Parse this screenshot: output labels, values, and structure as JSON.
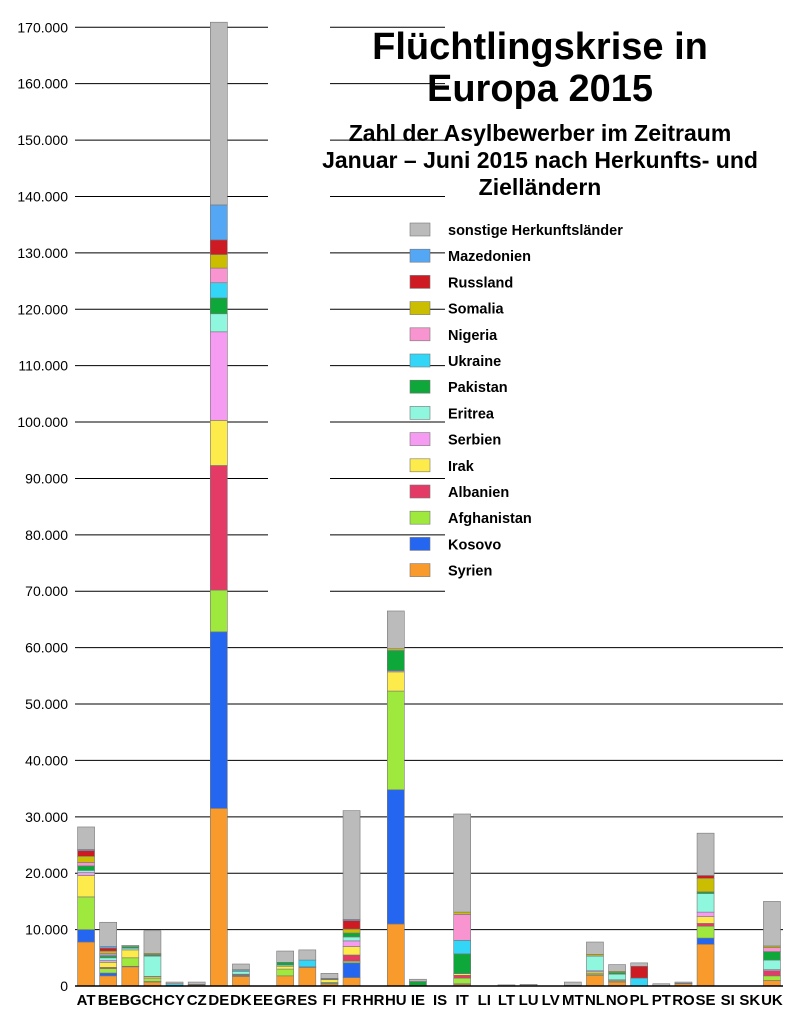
{
  "chart_data": {
    "type": "bar",
    "stacked": true,
    "title": "Flüchtlingskrise in Europa 2015",
    "subtitle": "Zahl der Asylbewerber im Zeitraum Januar – Juni 2015 nach Herkunfts- und Zielländern",
    "xlabel": "",
    "ylabel": "",
    "ylim": [
      0,
      172000
    ],
    "yticks": [
      "0",
      "10.000",
      "20.000",
      "30.000",
      "40.000",
      "50.000",
      "60.000",
      "70.000",
      "80.000",
      "90.000",
      "100.000",
      "110.000",
      "120.000",
      "130.000",
      "140.000",
      "150.000",
      "160.000",
      "170.000"
    ],
    "ytick_values": [
      0,
      10000,
      20000,
      30000,
      40000,
      50000,
      60000,
      70000,
      80000,
      90000,
      100000,
      110000,
      120000,
      130000,
      140000,
      150000,
      160000,
      170000
    ],
    "grid": true,
    "legend_position": "top-right",
    "categories": [
      "AT",
      "BE",
      "BG",
      "CH",
      "CY",
      "CZ",
      "DE",
      "DK",
      "EE",
      "GR",
      "ES",
      "FI",
      "FR",
      "HR",
      "HU",
      "IE",
      "IS",
      "IT",
      "LI",
      "LT",
      "LU",
      "LV",
      "MT",
      "NL",
      "NO",
      "PL",
      "PT",
      "RO",
      "SE",
      "SI",
      "SK",
      "UK"
    ],
    "series": [
      {
        "name": "Syrien",
        "color": "#F99B2C",
        "values": [
          7800,
          1800,
          3400,
          700,
          100,
          200,
          31500,
          1700,
          0,
          1800,
          3300,
          400,
          1500,
          0,
          11000,
          0,
          0,
          300,
          0,
          0,
          0,
          0,
          100,
          1900,
          700,
          0,
          0,
          400,
          7400,
          0,
          0,
          1000
        ]
      },
      {
        "name": "Kosovo",
        "color": "#2566F0",
        "values": [
          2200,
          500,
          100,
          100,
          0,
          0,
          31300,
          100,
          0,
          0,
          0,
          50,
          2600,
          0,
          23800,
          0,
          0,
          100,
          0,
          0,
          0,
          0,
          0,
          100,
          0,
          0,
          0,
          0,
          1100,
          0,
          0,
          0
        ]
      },
      {
        "name": "Afghanistan",
        "color": "#9FE83E",
        "values": [
          5800,
          800,
          1500,
          500,
          0,
          0,
          7400,
          100,
          0,
          1200,
          0,
          200,
          300,
          0,
          17500,
          0,
          0,
          1000,
          0,
          0,
          0,
          0,
          0,
          200,
          100,
          0,
          0,
          0,
          2100,
          0,
          0,
          800
        ]
      },
      {
        "name": "Albanien",
        "color": "#E33A66",
        "values": [
          0,
          200,
          0,
          0,
          0,
          0,
          22100,
          0,
          0,
          0,
          0,
          0,
          1100,
          0,
          0,
          100,
          0,
          500,
          0,
          0,
          0,
          0,
          0,
          0,
          0,
          0,
          0,
          0,
          500,
          0,
          0,
          900
        ]
      },
      {
        "name": "Irak",
        "color": "#FDEB4B",
        "values": [
          3800,
          900,
          1400,
          300,
          0,
          100,
          8000,
          100,
          0,
          500,
          100,
          500,
          1500,
          0,
          3400,
          0,
          0,
          300,
          0,
          0,
          0,
          0,
          0,
          300,
          200,
          0,
          0,
          100,
          1200,
          0,
          0,
          0
        ]
      },
      {
        "name": "Serbien",
        "color": "#F59BF2",
        "values": [
          500,
          300,
          0,
          100,
          0,
          0,
          15700,
          100,
          0,
          0,
          0,
          50,
          1000,
          0,
          200,
          0,
          0,
          0,
          0,
          0,
          0,
          0,
          0,
          200,
          100,
          0,
          0,
          0,
          800,
          0,
          0,
          200
        ]
      },
      {
        "name": "Eritrea",
        "color": "#8FF7DE",
        "values": [
          400,
          500,
          300,
          3600,
          0,
          0,
          3200,
          500,
          0,
          200,
          0,
          50,
          700,
          0,
          0,
          0,
          0,
          0,
          0,
          0,
          0,
          0,
          0,
          2600,
          1000,
          0,
          0,
          0,
          3300,
          0,
          0,
          1700
        ]
      },
      {
        "name": "Pakistan",
        "color": "#0EA83A",
        "values": [
          800,
          300,
          300,
          200,
          0,
          0,
          2800,
          0,
          0,
          500,
          0,
          50,
          700,
          0,
          3600,
          700,
          0,
          3500,
          0,
          0,
          0,
          0,
          0,
          0,
          300,
          0,
          0,
          0,
          300,
          0,
          0,
          1500
        ]
      },
      {
        "name": "Ukraine",
        "color": "#34D6F8",
        "values": [
          0,
          200,
          0,
          100,
          300,
          0,
          2700,
          200,
          0,
          0,
          1200,
          0,
          0,
          0,
          0,
          0,
          0,
          2400,
          0,
          0,
          0,
          0,
          0,
          0,
          0,
          1400,
          0,
          0,
          0,
          0,
          0,
          0
        ]
      },
      {
        "name": "Nigeria",
        "color": "#F895D0",
        "values": [
          600,
          300,
          0,
          0,
          0,
          0,
          2600,
          0,
          0,
          0,
          0,
          0,
          0,
          0,
          0,
          0,
          0,
          4600,
          0,
          0,
          0,
          0,
          0,
          0,
          0,
          0,
          0,
          0,
          0,
          0,
          0,
          700
        ]
      },
      {
        "name": "Somalia",
        "color": "#CBBE00",
        "values": [
          1100,
          400,
          0,
          200,
          0,
          0,
          2400,
          0,
          0,
          0,
          0,
          50,
          700,
          0,
          300,
          0,
          0,
          400,
          0,
          0,
          0,
          0,
          0,
          300,
          200,
          0,
          0,
          0,
          2400,
          0,
          0,
          300
        ]
      },
      {
        "name": "Russland",
        "color": "#CE1A22",
        "values": [
          1000,
          500,
          0,
          0,
          0,
          0,
          2600,
          0,
          0,
          0,
          0,
          0,
          1500,
          0,
          0,
          0,
          0,
          0,
          0,
          0,
          0,
          0,
          0,
          0,
          0,
          2100,
          0,
          0,
          500,
          0,
          0,
          0
        ]
      },
      {
        "name": "Mazedonien",
        "color": "#54A7F5",
        "values": [
          200,
          300,
          0,
          0,
          0,
          0,
          6200,
          100,
          0,
          0,
          0,
          0,
          200,
          0,
          0,
          0,
          0,
          0,
          0,
          0,
          0,
          0,
          0,
          0,
          0,
          0,
          0,
          0,
          0,
          0,
          0,
          0
        ]
      },
      {
        "name": "sonstige Herkunftsländer",
        "color": "#BBBBBB",
        "values": [
          4000,
          4300,
          200,
          4000,
          300,
          400,
          32400,
          1000,
          0,
          2000,
          1800,
          900,
          19300,
          0,
          6700,
          400,
          0,
          17400,
          0,
          200,
          300,
          0,
          600,
          2200,
          1200,
          600,
          400,
          200,
          7500,
          0,
          0,
          7900
        ]
      }
    ]
  }
}
